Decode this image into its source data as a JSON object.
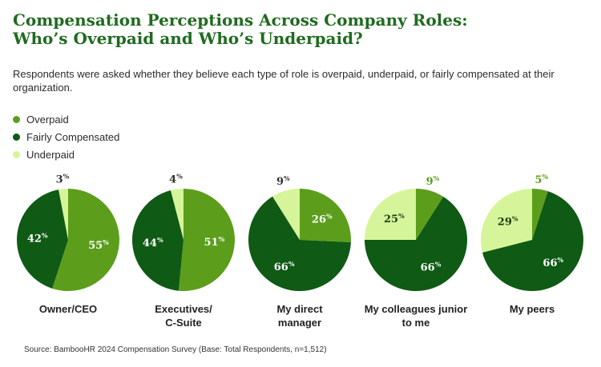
{
  "title_line1": "Compensation Perceptions Across Company Roles:",
  "title_line2": "Who’s Overpaid and Who’s Underpaid?",
  "subtitle": "Respondents were asked whether they believe each type of role is overpaid, underpaid, or fairly compensated at their organization.",
  "source": "Source: BambooHR 2024 Compensation Survey (Base: Total Respondents, n=1,512)",
  "colors": {
    "overpaid": "#5c9e1b",
    "fairly_compensated": "#0f5a14",
    "underpaid": "#d6f59a"
  },
  "chart_data": {
    "type": "pie",
    "series_names": [
      "Overpaid",
      "Fairly Compensated",
      "Underpaid"
    ],
    "legend": [
      "Overpaid",
      "Fairly Compensated",
      "Underpaid"
    ],
    "legend_placement": "top-left",
    "charts": [
      {
        "category": "Owner/CEO",
        "values": {
          "overpaid": 55,
          "fairly_compensated": 42,
          "underpaid": 3
        }
      },
      {
        "category": "Executives/ C-Suite",
        "values": {
          "overpaid": 51,
          "fairly_compensated": 44,
          "underpaid": 4
        }
      },
      {
        "category": "My direct manager",
        "values": {
          "overpaid": 26,
          "fairly_compensated": 66,
          "underpaid": 9
        }
      },
      {
        "category": "My colleagues junior to me",
        "values": {
          "overpaid": 9,
          "fairly_compensated": 66,
          "underpaid": 25
        }
      },
      {
        "category": "My peers",
        "values": {
          "overpaid": 5,
          "fairly_compensated": 66,
          "underpaid": 29
        }
      }
    ]
  },
  "categories": [
    {
      "line1": "Owner/CEO",
      "line2": ""
    },
    {
      "line1": "Executives/",
      "line2": "C-Suite"
    },
    {
      "line1": "My direct",
      "line2": "manager"
    },
    {
      "line1": "My colleagues junior",
      "line2": "to me"
    },
    {
      "line1": "My peers",
      "line2": ""
    }
  ]
}
